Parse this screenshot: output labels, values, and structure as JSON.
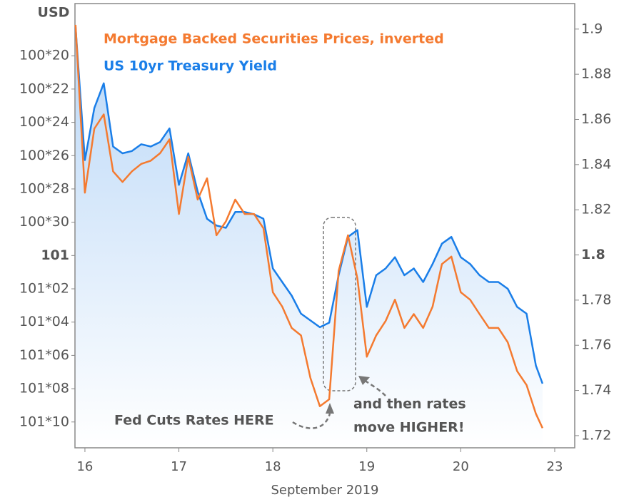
{
  "chart_data": {
    "type": "line",
    "y_axis_label": "USD",
    "x_axis_label": "September 2019",
    "x": [
      -0.1,
      0,
      0.1,
      0.2,
      0.3,
      0.4,
      0.5,
      0.6,
      0.7,
      0.8,
      0.9,
      1.0,
      1.1,
      1.2,
      1.3,
      1.4,
      1.5,
      1.6,
      1.7,
      1.8,
      1.9,
      2.0,
      2.1,
      2.2,
      2.3,
      2.4,
      2.5,
      2.6,
      2.7,
      2.8,
      2.9,
      3.0,
      3.1,
      3.2,
      3.3,
      3.4,
      3.5,
      3.6,
      3.7,
      3.8,
      3.9,
      4.0,
      4.1,
      4.2,
      4.3,
      4.4,
      4.5,
      4.6,
      4.7,
      4.8,
      4.87
    ],
    "series": [
      {
        "name": "Mortgage Backed Securities Prices, inverted",
        "color": "#f47a30",
        "axis": "y",
        "values": [
          100.567,
          100.882,
          100.762,
          100.735,
          100.842,
          100.862,
          100.842,
          100.828,
          100.822,
          100.808,
          100.782,
          100.922,
          100.815,
          100.895,
          100.855,
          100.962,
          100.936,
          100.895,
          100.922,
          100.922,
          100.949,
          101.069,
          101.096,
          101.136,
          101.15,
          101.23,
          101.283,
          101.27,
          101.029,
          100.962,
          101.043,
          101.19,
          101.15,
          101.123,
          101.083,
          101.136,
          101.11,
          101.136,
          101.096,
          101.016,
          101.002,
          101.069,
          101.083,
          101.11,
          101.136,
          101.136,
          101.163,
          101.217,
          101.243,
          101.297,
          101.324
        ]
      },
      {
        "name": "US 10yr Treasury Yield",
        "color": "#1a7ee8",
        "axis": "y2",
        "values": [
          1.901,
          1.842,
          1.865,
          1.876,
          1.848,
          1.845,
          1.846,
          1.849,
          1.848,
          1.85,
          1.856,
          1.831,
          1.845,
          1.828,
          1.816,
          1.813,
          1.812,
          1.819,
          1.819,
          1.818,
          1.816,
          1.794,
          1.788,
          1.782,
          1.774,
          1.771,
          1.768,
          1.77,
          1.791,
          1.808,
          1.811,
          1.777,
          1.791,
          1.794,
          1.799,
          1.791,
          1.794,
          1.788,
          1.796,
          1.805,
          1.808,
          1.799,
          1.796,
          1.791,
          1.788,
          1.788,
          1.785,
          1.777,
          1.774,
          1.751,
          1.743
        ]
      }
    ],
    "xlim": [
      -0.106,
      5.213
    ],
    "xticks": [
      {
        "value": 0,
        "label": "16"
      },
      {
        "value": 1,
        "label": "17"
      },
      {
        "value": 2,
        "label": "18"
      },
      {
        "value": 3,
        "label": "19"
      },
      {
        "value": 4,
        "label": "20"
      },
      {
        "value": 5,
        "label": "23"
      }
    ],
    "ylim": [
      100.527,
      101.361
    ],
    "yinverted": true,
    "yticks": [
      {
        "value": 100.625,
        "label": "100*20"
      },
      {
        "value": 100.6875,
        "label": "100*22"
      },
      {
        "value": 100.75,
        "label": "100*24"
      },
      {
        "value": 100.8125,
        "label": "100*26"
      },
      {
        "value": 100.875,
        "label": "100*28"
      },
      {
        "value": 100.9375,
        "label": "100*30"
      },
      101,
      {
        "value": 101.0625,
        "label": "101*02"
      },
      {
        "value": 101.125,
        "label": "101*04"
      },
      {
        "value": 101.1875,
        "label": "101*06"
      },
      {
        "value": 101.25,
        "label": "101*08"
      },
      {
        "value": 101.3125,
        "label": "101*10"
      }
    ],
    "y2lim": [
      1.7146,
      1.9113
    ],
    "y2ticks": [
      1.9,
      1.88,
      1.86,
      1.84,
      1.82,
      1.8,
      1.78,
      1.76,
      1.74,
      1.72
    ],
    "annotations": [
      {
        "text": "Fed Cuts Rates HERE"
      },
      {
        "text": "and then rates"
      },
      {
        "text": "move HIGHER!"
      }
    ]
  }
}
